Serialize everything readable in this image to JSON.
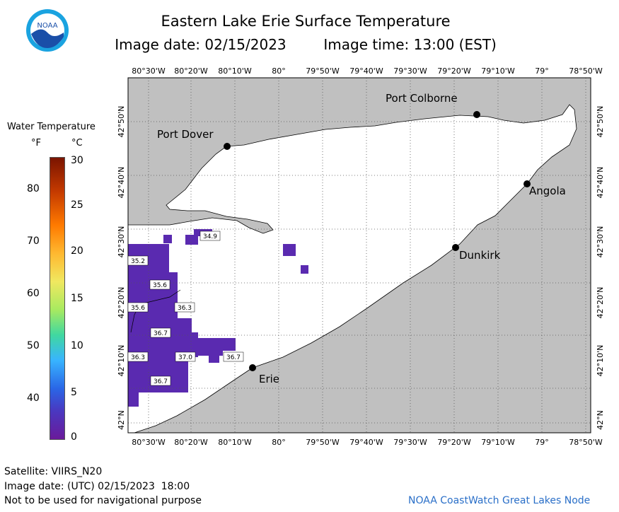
{
  "header": {
    "title": "Eastern Lake Erie Surface Temperature",
    "image_date": "Image date: 02/15/2023",
    "image_time": "Image time: 13:00 (EST)"
  },
  "logo": {
    "text": "NOAA"
  },
  "legend": {
    "title": "Water Temperature",
    "unit_f": "°F",
    "unit_c": "°C",
    "f_ticks": [
      "80",
      "70",
      "60",
      "50",
      "40"
    ],
    "c_ticks": [
      "30",
      "25",
      "20",
      "15",
      "10",
      "5",
      "0"
    ]
  },
  "map": {
    "lon_labels": [
      "80°30'W",
      "80°20'W",
      "80°10'W",
      "80°",
      "79°50'W",
      "79°40'W",
      "79°30'W",
      "79°20'W",
      "79°10'W",
      "79°",
      "78°50'W"
    ],
    "lat_labels": [
      "42°50'N",
      "42°40'N",
      "42°30'N",
      "42°20'N",
      "42°10'N",
      "42°N"
    ],
    "cities": [
      "Port Colborne",
      "Port Dover",
      "Angola",
      "Dunkirk",
      "Erie"
    ],
    "temperature_labels": [
      "34.9",
      "35.2",
      "35.6",
      "35.6",
      "36.3",
      "36.7",
      "36.3",
      "37.0",
      "36.7",
      "36.7"
    ],
    "colors": {
      "land": "#c0c0c0",
      "lake": "#ffffff",
      "cold_water": "#5a2ab0",
      "grid": "#555555"
    }
  },
  "footer": {
    "satellite": "Satellite: VIIRS_N20",
    "utc_date": "Image date: (UTC) 02/15/2023  18:00",
    "disclaimer": "Not to be used for navigational purpose",
    "credit": "NOAA CoastWatch Great Lakes Node"
  }
}
